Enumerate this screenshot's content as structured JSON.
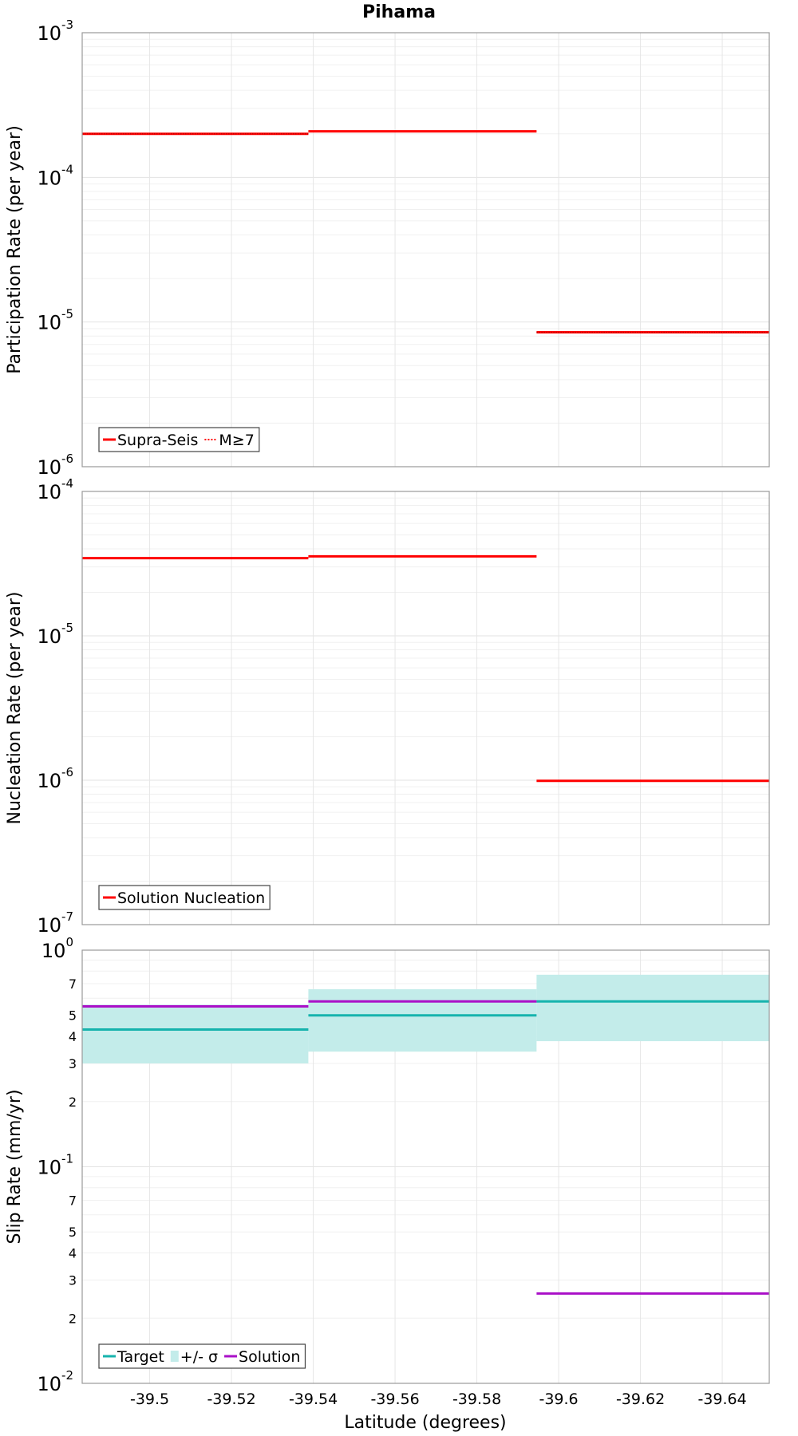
{
  "chart_data": {
    "type": "line",
    "title": "Pihama",
    "xlabel": "Latitude (degrees)",
    "xlim": [
      -39.4835,
      -39.6515
    ],
    "x_reversed": true,
    "x_ticks": [
      -39.5,
      -39.52,
      -39.54,
      -39.56,
      -39.58,
      -39.6,
      -39.62,
      -39.64
    ],
    "x_tick_labels": [
      "-39.5",
      "-39.52",
      "-39.54",
      "-39.56",
      "-39.58",
      "-39.6",
      "-39.62",
      "-39.64"
    ],
    "grid": true,
    "panels": [
      {
        "ylabel": "Participation Rate (per year)",
        "yscale": "log",
        "ylim": [
          1e-06,
          0.001
        ],
        "y_major_ticks": [
          {
            "value": 1e-06,
            "base": "10",
            "exp": "-6"
          },
          {
            "value": 1e-05,
            "base": "10",
            "exp": "-5"
          },
          {
            "value": 0.0001,
            "base": "10",
            "exp": "-4"
          },
          {
            "value": 0.001,
            "base": "10",
            "exp": "-3"
          }
        ],
        "legend_position": "bottom-left",
        "series": [
          {
            "name": "Supra-Seis",
            "color": "#ff0000",
            "style": "solid",
            "segments": [
              {
                "x0": -39.4835,
                "x1": -39.5388,
                "y": 0.0002
              },
              {
                "x0": -39.5388,
                "x1": -39.5946,
                "y": 0.000208
              },
              {
                "x0": -39.5946,
                "x1": -39.6515,
                "y": 8.5e-06
              }
            ]
          },
          {
            "name": "M≥7",
            "color": "#ff0000",
            "style": "dotted",
            "segments": [
              {
                "x0": -39.4835,
                "x1": -39.5388,
                "y": 0.0002
              },
              {
                "x0": -39.5946,
                "x1": -39.6515,
                "y": 8.5e-06
              }
            ]
          }
        ]
      },
      {
        "ylabel": "Nucleation Rate (per year)",
        "yscale": "log",
        "ylim": [
          1e-07,
          0.0001
        ],
        "y_major_ticks": [
          {
            "value": 1e-07,
            "base": "10",
            "exp": "-7"
          },
          {
            "value": 1e-06,
            "base": "10",
            "exp": "-6"
          },
          {
            "value": 1e-05,
            "base": "10",
            "exp": "-5"
          },
          {
            "value": 0.0001,
            "base": "10",
            "exp": "-4"
          }
        ],
        "legend_position": "bottom-left",
        "series": [
          {
            "name": "Solution Nucleation",
            "color": "#ff0000",
            "style": "solid",
            "segments": [
              {
                "x0": -39.4835,
                "x1": -39.5388,
                "y": 3.45e-05
              },
              {
                "x0": -39.5388,
                "x1": -39.5946,
                "y": 3.55e-05
              },
              {
                "x0": -39.5946,
                "x1": -39.6515,
                "y": 9.9e-07
              }
            ]
          }
        ]
      },
      {
        "ylabel": "Slip Rate (mm/yr)",
        "yscale": "log",
        "ylim": [
          0.01,
          1
        ],
        "y_major_ticks": [
          {
            "value": 0.01,
            "base": "10",
            "exp": "-2"
          },
          {
            "value": 0.1,
            "base": "10",
            "exp": "-1"
          },
          {
            "value": 1,
            "base": "10",
            "exp": "0"
          }
        ],
        "y_minor_labels": [
          {
            "value": 0.02,
            "label": "2"
          },
          {
            "value": 0.03,
            "label": "3"
          },
          {
            "value": 0.04,
            "label": "4"
          },
          {
            "value": 0.05,
            "label": "5"
          },
          {
            "value": 0.07,
            "label": "7"
          },
          {
            "value": 0.2,
            "label": "2"
          },
          {
            "value": 0.3,
            "label": "3"
          },
          {
            "value": 0.4,
            "label": "4"
          },
          {
            "value": 0.5,
            "label": "5"
          },
          {
            "value": 0.7,
            "label": "7"
          }
        ],
        "legend_position": "bottom-left",
        "bands": [
          {
            "name": "+/- σ",
            "color": "#c3ecea",
            "segments": [
              {
                "x0": -39.4835,
                "x1": -39.5388,
                "y0": 0.3,
                "y1": 0.56
              },
              {
                "x0": -39.5388,
                "x1": -39.5946,
                "y0": 0.34,
                "y1": 0.66
              },
              {
                "x0": -39.5946,
                "x1": -39.6515,
                "y0": 0.38,
                "y1": 0.77
              }
            ]
          }
        ],
        "series": [
          {
            "name": "Target",
            "color": "#16b3ad",
            "style": "solid",
            "segments": [
              {
                "x0": -39.4835,
                "x1": -39.5388,
                "y": 0.43
              },
              {
                "x0": -39.5388,
                "x1": -39.5946,
                "y": 0.5
              },
              {
                "x0": -39.5946,
                "x1": -39.6515,
                "y": 0.58
              }
            ]
          },
          {
            "name": "Solution",
            "color": "#aa10c8",
            "style": "solid",
            "segments": [
              {
                "x0": -39.4835,
                "x1": -39.5388,
                "y": 0.55
              },
              {
                "x0": -39.5388,
                "x1": -39.5946,
                "y": 0.58
              },
              {
                "x0": -39.5946,
                "x1": -39.6515,
                "y": 0.026
              }
            ]
          }
        ]
      }
    ]
  }
}
